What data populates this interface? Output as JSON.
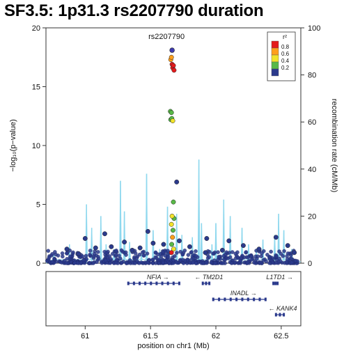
{
  "figure": {
    "title": "SF3.5: 1p31.3 rs2207790 duration"
  },
  "chart_data": {
    "type": "scatter",
    "title": "rs2207790",
    "xlabel": "position on chr1 (Mb)",
    "ylabel": "−log₁₀(p−value)",
    "y2label": "recombination rate (cM/Mb)",
    "xlim": [
      60.7,
      62.65
    ],
    "ylim": [
      0,
      20
    ],
    "y2lim": [
      0,
      100
    ],
    "x_ticks": [
      61,
      61.5,
      62,
      62.5
    ],
    "x_tick_labels": [
      "61",
      "61.5",
      "62",
      "62.5"
    ],
    "y_ticks": [
      0,
      5,
      10,
      15,
      20
    ],
    "y2_ticks": [
      0,
      20,
      40,
      60,
      80,
      100
    ],
    "grid": false,
    "legend": {
      "position": "top-right",
      "title": "r²",
      "entries": [
        {
          "label": "0.8",
          "color": "#e41a1c"
        },
        {
          "label": "0.6",
          "color": "#ff9f1c"
        },
        {
          "label": "0.4",
          "color": "#f2e32b"
        },
        {
          "label": "0.2",
          "color": "#58b947"
        },
        {
          "label": "",
          "color": "#2b3a8c"
        }
      ]
    },
    "colors": {
      "lead": "#3d3bb0",
      "very_high": "#e41a1c",
      "high": "#ff9f1c",
      "mid": "#f2e32b",
      "low": "#58b947",
      "none": "#2b3a8c",
      "recombination": "#8fd8ee"
    },
    "lead_snp": {
      "label": "rs2207790",
      "x": 61.665,
      "y": 18.1
    },
    "points": [
      {
        "x": 61.655,
        "y": 17.3,
        "ld": "high"
      },
      {
        "x": 61.66,
        "y": 17.5,
        "ld": "high"
      },
      {
        "x": 61.665,
        "y": 16.9,
        "ld": "very_high"
      },
      {
        "x": 61.67,
        "y": 16.6,
        "ld": "very_high"
      },
      {
        "x": 61.675,
        "y": 16.8,
        "ld": "very_high"
      },
      {
        "x": 61.68,
        "y": 16.4,
        "ld": "very_high"
      },
      {
        "x": 61.652,
        "y": 12.9,
        "ld": "low"
      },
      {
        "x": 61.66,
        "y": 12.8,
        "ld": "low"
      },
      {
        "x": 61.655,
        "y": 12.2,
        "ld": "low"
      },
      {
        "x": 61.663,
        "y": 12.3,
        "ld": "low"
      },
      {
        "x": 61.67,
        "y": 12.1,
        "ld": "mid"
      },
      {
        "x": 61.7,
        "y": 6.9,
        "ld": "none"
      },
      {
        "x": 61.675,
        "y": 5.2,
        "ld": "low"
      },
      {
        "x": 61.665,
        "y": 4.0,
        "ld": "mid"
      },
      {
        "x": 61.68,
        "y": 3.8,
        "ld": "low"
      },
      {
        "x": 61.66,
        "y": 3.3,
        "ld": "mid"
      },
      {
        "x": 61.672,
        "y": 2.8,
        "ld": "low"
      },
      {
        "x": 61.668,
        "y": 2.2,
        "ld": "high"
      },
      {
        "x": 61.662,
        "y": 1.6,
        "ld": "low"
      },
      {
        "x": 61.66,
        "y": 0.9,
        "ld": "very_high"
      },
      {
        "x": 61.677,
        "y": 1.2,
        "ld": "mid"
      },
      {
        "x": 61.2,
        "y": 1.4,
        "ld": "none"
      },
      {
        "x": 61.15,
        "y": 2.5,
        "ld": "none"
      },
      {
        "x": 61.48,
        "y": 2.7,
        "ld": "none"
      },
      {
        "x": 61.52,
        "y": 1.7,
        "ld": "none"
      },
      {
        "x": 61.0,
        "y": 2.1,
        "ld": "none"
      },
      {
        "x": 61.08,
        "y": 1.3,
        "ld": "none"
      },
      {
        "x": 61.3,
        "y": 1.8,
        "ld": "none"
      },
      {
        "x": 61.36,
        "y": 1.1,
        "ld": "none"
      },
      {
        "x": 61.93,
        "y": 2.1,
        "ld": "none"
      },
      {
        "x": 62.21,
        "y": 1.5,
        "ld": "none"
      },
      {
        "x": 62.46,
        "y": 2.2,
        "ld": "none"
      },
      {
        "x": 62.33,
        "y": 1.2,
        "ld": "none"
      },
      {
        "x": 62.55,
        "y": 1.5,
        "ld": "none"
      },
      {
        "x": 60.86,
        "y": 1.2,
        "ld": "none"
      },
      {
        "x": 61.8,
        "y": 1.4,
        "ld": "none"
      },
      {
        "x": 62.05,
        "y": 1.1,
        "ld": "none"
      },
      {
        "x": 61.6,
        "y": 1.6,
        "ld": "none"
      },
      {
        "x": 61.72,
        "y": 1.9,
        "ld": "none"
      },
      {
        "x": 61.42,
        "y": 1.3,
        "ld": "none"
      },
      {
        "x": 62.1,
        "y": 1.9,
        "ld": "none"
      },
      {
        "x": 61.92,
        "y": 0.9,
        "ld": "none"
      },
      {
        "x": 60.95,
        "y": 0.8,
        "ld": "none"
      },
      {
        "x": 62.6,
        "y": 0.9,
        "ld": "none"
      }
    ],
    "recombination": [
      {
        "x": 60.76,
        "y": 4
      },
      {
        "x": 60.88,
        "y": 8
      },
      {
        "x": 61.01,
        "y": 25
      },
      {
        "x": 61.05,
        "y": 15
      },
      {
        "x": 61.12,
        "y": 20
      },
      {
        "x": 61.16,
        "y": 8
      },
      {
        "x": 61.22,
        "y": 6
      },
      {
        "x": 61.27,
        "y": 35
      },
      {
        "x": 61.3,
        "y": 22
      },
      {
        "x": 61.34,
        "y": 9
      },
      {
        "x": 61.43,
        "y": 4
      },
      {
        "x": 61.47,
        "y": 38
      },
      {
        "x": 61.52,
        "y": 14
      },
      {
        "x": 61.57,
        "y": 6
      },
      {
        "x": 61.63,
        "y": 24
      },
      {
        "x": 61.7,
        "y": 21
      },
      {
        "x": 61.74,
        "y": 12
      },
      {
        "x": 61.82,
        "y": 11
      },
      {
        "x": 61.87,
        "y": 44
      },
      {
        "x": 61.89,
        "y": 17
      },
      {
        "x": 61.97,
        "y": 8
      },
      {
        "x": 62.0,
        "y": 17
      },
      {
        "x": 62.06,
        "y": 27
      },
      {
        "x": 62.11,
        "y": 20
      },
      {
        "x": 62.2,
        "y": 15
      },
      {
        "x": 62.25,
        "y": 8
      },
      {
        "x": 62.31,
        "y": 6
      },
      {
        "x": 62.36,
        "y": 10
      },
      {
        "x": 62.45,
        "y": 12
      },
      {
        "x": 62.48,
        "y": 21
      },
      {
        "x": 62.52,
        "y": 14
      },
      {
        "x": 62.58,
        "y": 6
      }
    ],
    "genes": [
      {
        "name": "NFIA",
        "start": 61.33,
        "end": 61.72,
        "strand": "+",
        "row": 0
      },
      {
        "name": "TM2D1",
        "start": 61.9,
        "end": 61.95,
        "strand": "-",
        "row": 0
      },
      {
        "name": "L1TD1",
        "start": 62.44,
        "end": 62.46,
        "strand": "+",
        "row": 0
      },
      {
        "name": "INADL",
        "start": 61.98,
        "end": 62.38,
        "strand": "+",
        "row": 1
      },
      {
        "name": "KANK4",
        "start": 62.46,
        "end": 62.52,
        "strand": "-",
        "row": 2
      }
    ]
  }
}
